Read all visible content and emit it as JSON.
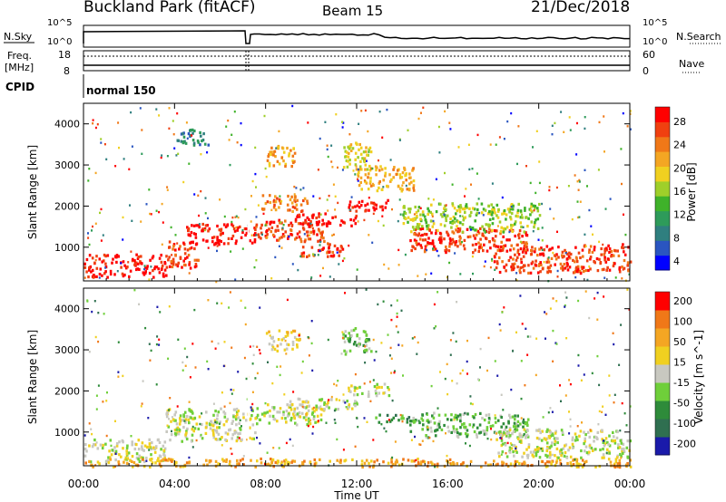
{
  "header": {
    "site": "Buckland Park (fitACF)",
    "beam": "Beam 15",
    "date": "21/Dec/2018"
  },
  "top_panels": {
    "nsky_label": "N.Sky",
    "nsearch_label": "N.Search",
    "noise_ticks": [
      "10^5",
      "10^0"
    ],
    "freq_label": "Freq.",
    "freq_unit": "[MHz]",
    "freq_ticks": [
      "18",
      "8"
    ],
    "nave_label": "Nave",
    "nave_ticks": [
      "60",
      "0"
    ],
    "cpid_label": "CPID",
    "cpid_value": "normal 150"
  },
  "chart_data": [
    {
      "type": "heatmap",
      "panel": "power",
      "xlabel": "Time UT",
      "ylabel": "Slant Range [km]",
      "x_ticks": [
        "00:00",
        "04:00",
        "08:00",
        "12:00",
        "16:00",
        "20:00",
        "00:00"
      ],
      "y_ticks": [
        1000,
        2000,
        3000,
        4000
      ],
      "xlim_hours": [
        0,
        24
      ],
      "ylim_km": [
        180,
        4500
      ],
      "colorbar": {
        "label": "Power [dB]",
        "tick_labels": [
          "4",
          "8",
          "12",
          "16",
          "20",
          "24",
          "28"
        ],
        "colors": [
          "#0000ff",
          "#2a55c0",
          "#2f7f7f",
          "#2e9b5a",
          "#3fb22a",
          "#9fcf2a",
          "#f0d020",
          "#f4a623",
          "#f07818",
          "#f04010",
          "#ff0000"
        ]
      },
      "clusters": [
        {
          "t0": 0.0,
          "t1": 3.6,
          "r0": 300,
          "r1": 850,
          "level": 10
        },
        {
          "t0": 3.6,
          "t1": 5.0,
          "r0": 500,
          "r1": 1200,
          "level": 9
        },
        {
          "t0": 4.5,
          "t1": 7.5,
          "r0": 1100,
          "r1": 1600,
          "level": 10
        },
        {
          "t0": 7.5,
          "t1": 10.5,
          "r0": 1200,
          "r1": 1700,
          "level": 9
        },
        {
          "t0": 9.0,
          "t1": 12.0,
          "r0": 1550,
          "r1": 1850,
          "level": 10
        },
        {
          "t0": 11.6,
          "t1": 13.4,
          "r0": 1900,
          "r1": 2200,
          "level": 10
        },
        {
          "t0": 9.5,
          "t1": 11.5,
          "r0": 800,
          "r1": 1200,
          "level": 9
        },
        {
          "t0": 7.8,
          "t1": 9.8,
          "r0": 1900,
          "r1": 2300,
          "level": 8
        },
        {
          "t0": 8.0,
          "t1": 9.5,
          "r0": 3000,
          "r1": 3500,
          "level": 7
        },
        {
          "t0": 11.3,
          "t1": 12.6,
          "r0": 2900,
          "r1": 3600,
          "level": 6
        },
        {
          "t0": 14.3,
          "t1": 19.5,
          "r0": 900,
          "r1": 1500,
          "level": 9
        },
        {
          "t0": 18.0,
          "t1": 24.0,
          "r0": 400,
          "r1": 1100,
          "level": 9
        },
        {
          "t0": 14.0,
          "t1": 20.0,
          "r0": 1400,
          "r1": 2100,
          "level": 5
        },
        {
          "t0": 4.0,
          "t1": 5.5,
          "r0": 3500,
          "r1": 3900,
          "level": 2
        },
        {
          "t0": 12.0,
          "t1": 14.5,
          "r0": 2400,
          "r1": 3000,
          "level": 7
        }
      ]
    },
    {
      "type": "heatmap",
      "panel": "velocity",
      "xlabel": "Time UT",
      "ylabel": "Slant Range [km]",
      "x_ticks": [
        "00:00",
        "04:00",
        "08:00",
        "12:00",
        "16:00",
        "20:00",
        "00:00"
      ],
      "y_ticks": [
        1000,
        2000,
        3000,
        4000
      ],
      "xlim_hours": [
        0,
        24
      ],
      "ylim_km": [
        180,
        4500
      ],
      "colorbar": {
        "label": "Velocity [m s^-1]",
        "tick_labels": [
          "200",
          "100",
          "50",
          "15",
          "-15",
          "-50",
          "-100",
          "-200"
        ],
        "colors": [
          "#1a1aaa",
          "#2f6f50",
          "#2e8b3a",
          "#6fcf3a",
          "#c8c8c0",
          "#f0d020",
          "#f4a623",
          "#f07818",
          "#ff0000"
        ]
      },
      "clusters": [
        {
          "t0": 0.0,
          "t1": 3.6,
          "r0": 300,
          "r1": 850,
          "level": 4
        },
        {
          "t0": 3.6,
          "t1": 7.5,
          "r0": 800,
          "r1": 1600,
          "level": 4
        },
        {
          "t0": 7.5,
          "t1": 10.5,
          "r0": 1200,
          "r1": 1700,
          "level": 4
        },
        {
          "t0": 9.0,
          "t1": 12.0,
          "r0": 1550,
          "r1": 1850,
          "level": 4
        },
        {
          "t0": 11.6,
          "t1": 13.4,
          "r0": 1900,
          "r1": 2200,
          "level": 4
        },
        {
          "t0": 12.8,
          "t1": 14.5,
          "r0": 1250,
          "r1": 1450,
          "level": 2
        },
        {
          "t0": 14.3,
          "t1": 19.5,
          "r0": 900,
          "r1": 1500,
          "level": 3
        },
        {
          "t0": 18.0,
          "t1": 24.0,
          "r0": 400,
          "r1": 1100,
          "level": 4
        },
        {
          "t0": 8.0,
          "t1": 9.5,
          "r0": 3000,
          "r1": 3500,
          "level": 5
        },
        {
          "t0": 11.3,
          "t1": 12.6,
          "r0": 2900,
          "r1": 3600,
          "level": 3
        },
        {
          "t0": 0.0,
          "t1": 24.0,
          "r0": 180,
          "r1": 380,
          "level": 6
        }
      ]
    }
  ]
}
